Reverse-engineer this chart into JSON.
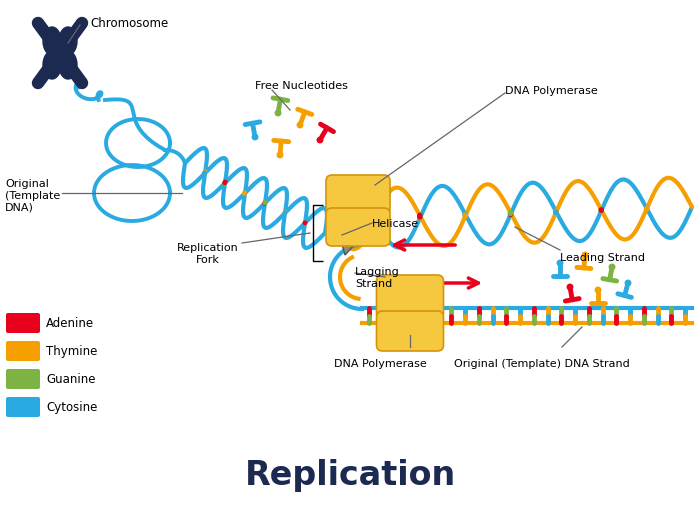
{
  "title": "Replication",
  "title_fontsize": 24,
  "title_fontweight": "bold",
  "background_color": "#ffffff",
  "labels": {
    "chromosome": "Chromosome",
    "free_nucleotides": "Free Nucleotides",
    "dna_polymerase_top": "DNA Polymerase",
    "leading_strand": "Leading Strand",
    "helicase": "Helicase",
    "lagging_strand": "Lagging\nStrand",
    "replication_fork": "Replication\nFork",
    "original_template": "Original\n(Template\nDNA)",
    "dna_polymerase_bottom": "DNA Polymerase",
    "original_template_strand": "Original (Template) DNA Strand"
  },
  "legend_items": [
    {
      "label": "Adenine",
      "color": "#e8001c"
    },
    {
      "label": "Thymine",
      "color": "#f5a000"
    },
    {
      "label": "Guanine",
      "color": "#7cb342"
    },
    {
      "label": "Cytosine",
      "color": "#29abe2"
    }
  ],
  "colors": {
    "adenine": "#e8001c",
    "thymine": "#f5a000",
    "guanine": "#7cb342",
    "cytosine": "#29abe2",
    "backbone_blue": "#29abe2",
    "backbone_orange": "#f5a000",
    "polymerase_yellow": "#f5c840",
    "polymerase_edge": "#d4940a",
    "helicase_gray": "#8a8a8a",
    "helicase_edge": "#555555",
    "chromosome_dark": "#1c2951",
    "arrow_red": "#e8001c",
    "label_line": "#666666",
    "black": "#000000"
  }
}
